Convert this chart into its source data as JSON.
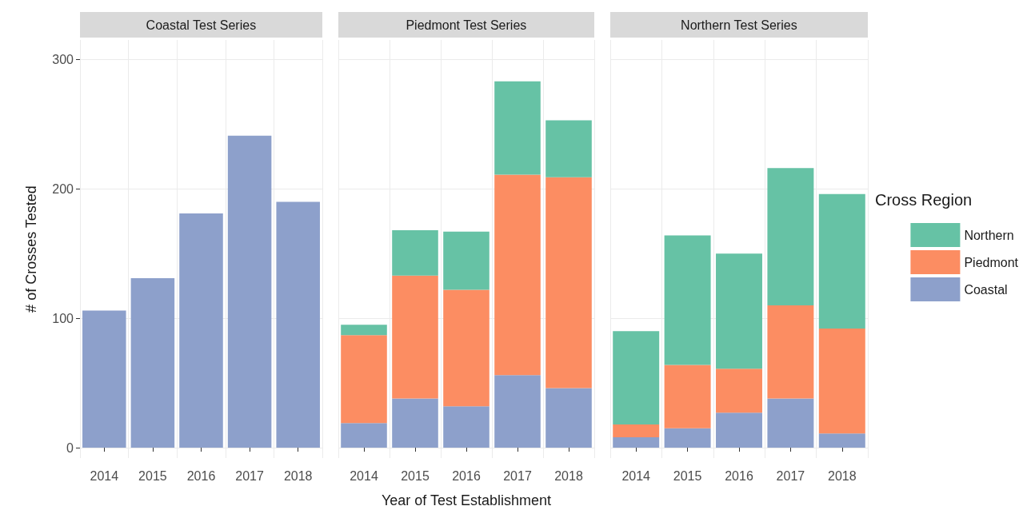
{
  "chart_data": [
    {
      "type": "bar",
      "title": "Coastal Test Series",
      "ylabel": "# of Crosses Tested",
      "categories": [
        "2014",
        "2015",
        "2016",
        "2017",
        "2018"
      ],
      "series": [
        {
          "color": "#8da0cb",
          "values": [
            106,
            131,
            181,
            241,
            190
          ]
        }
      ],
      "ylim": [
        -8,
        315
      ],
      "yticks": [
        0,
        100,
        200,
        300
      ],
      "grid": true,
      "legend": false
    },
    {
      "type": "bar",
      "title": "Piedmont Test Series",
      "xlabel": "Year of Test Establishment",
      "categories": [
        "2014",
        "2015",
        "2016",
        "2017",
        "2018"
      ],
      "stacked": true,
      "series": [
        {
          "color": "#8da0cb",
          "values": [
            19,
            38,
            32,
            56,
            46
          ]
        },
        {
          "color": "#fc8d62",
          "values": [
            68,
            95,
            90,
            155,
            163
          ]
        },
        {
          "color": "#66c2a5",
          "values": [
            8,
            35,
            45,
            72,
            44
          ]
        }
      ],
      "ylim": [
        -8,
        315
      ],
      "yticks": [
        0,
        100,
        200,
        300
      ],
      "grid": true,
      "legend": false,
      "tick_labels": "x"
    },
    {
      "type": "bar",
      "title": "Northern Test Series",
      "legend_title": "Cross Region",
      "categories": [
        "2014",
        "2015",
        "2016",
        "2017",
        "2018"
      ],
      "stacked": true,
      "series": [
        {
          "name": "Coastal",
          "color": "#8da0cb",
          "values": [
            8,
            15,
            27,
            38,
            11
          ]
        },
        {
          "name": "Piedmont",
          "color": "#fc8d62",
          "values": [
            10,
            49,
            34,
            72,
            81
          ]
        },
        {
          "name": "Northern",
          "color": "#66c2a5",
          "values": [
            72,
            100,
            89,
            106,
            104
          ]
        }
      ],
      "ylim": [
        -8,
        315
      ],
      "yticks": [
        0,
        100,
        200,
        300
      ],
      "grid": true,
      "legend": "right",
      "tick_labels": "x"
    }
  ]
}
